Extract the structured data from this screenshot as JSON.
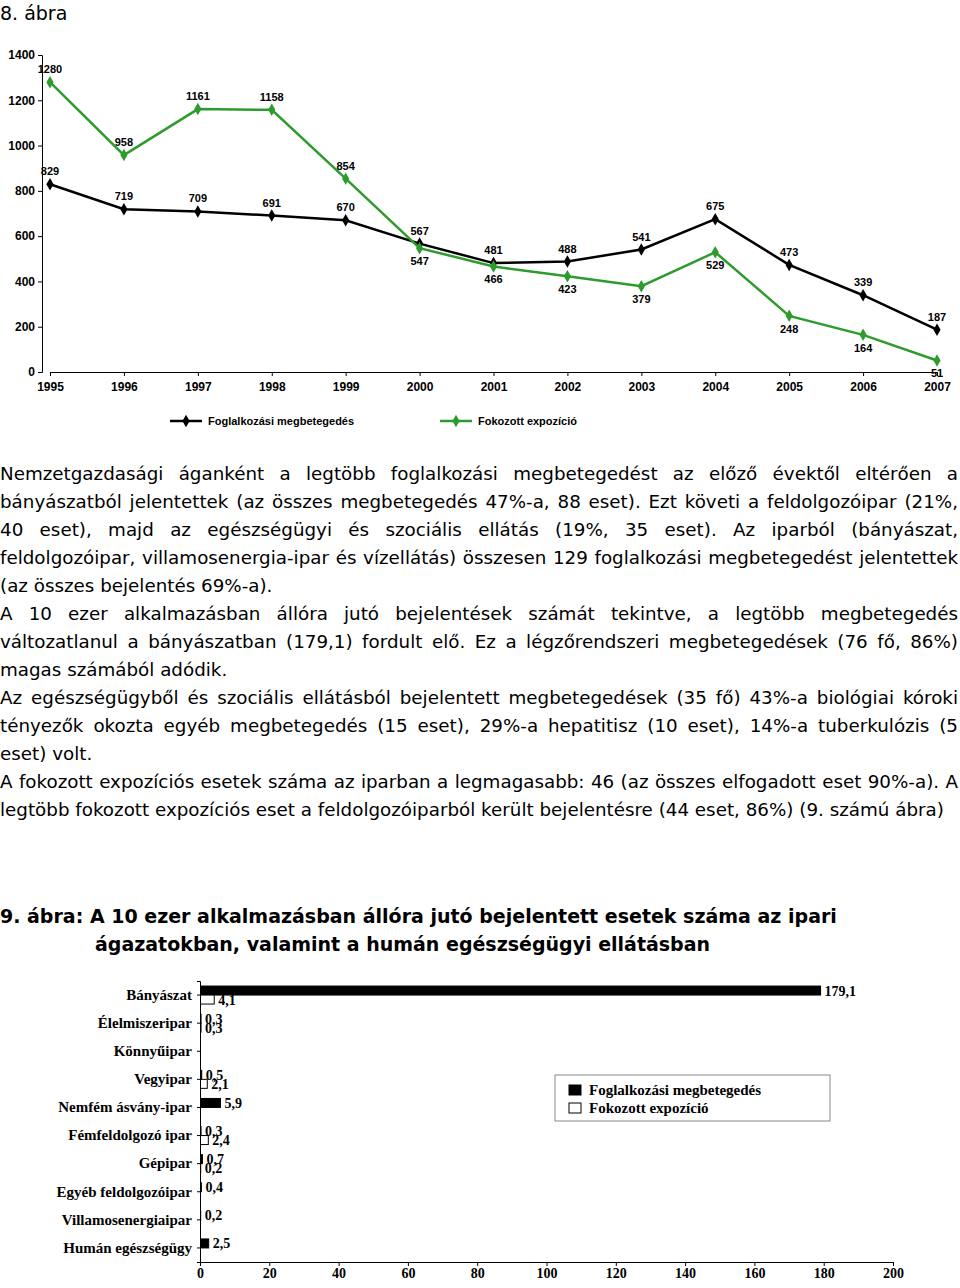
{
  "document": {
    "paragraphs": [
      "Nemzetgazdasági áganként a legtöbb foglalkozási megbetegedést az előző évektől eltérően a bányászatból jelentettek (az összes megbetegedés 47%-a, 88 eset). Ezt követi a feldolgozóipar (21%, 40 eset), majd az egészségügyi és szociális ellátás (19%, 35 eset). Az iparból (bányászat, feldolgozóipar, villamosenergia-ipar és vízellátás) összesen 129 foglalkozási megbetegedést jelentettek (az összes bejelentés 69%-a).",
      "A 10 ezer alkalmazásban állóra jutó bejelentések számát tekintve, a legtöbb megbetegedés változatlanul a bányászatban (179,1) fordult elő. Ez a légzőrendszeri megbetegedések (76 fő, 86%) magas számából adódik.",
      "Az egészségügyből és szociális ellátásból bejelentett megbetegedések (35 fő) 43%-a biológiai kóroki tényezők okozta egyéb megbetegedés (15 eset), 29%-a hepatitisz (10 eset), 14%-a tuberkulózis (5 eset) volt.",
      "A fokozott expozíciós esetek száma az iparban a legmagasabb: 46 (az összes elfogadott eset 90%-a). A legtöbb fokozott expozíciós eset a feldolgozóiparból került bejelentésre (44 eset, 86%) (9. számú ábra)"
    ]
  },
  "chart_data": [
    {
      "type": "line",
      "title": "8. ábra",
      "categories": [
        "1995",
        "1996",
        "1997",
        "1998",
        "1999",
        "2000",
        "2001",
        "2002",
        "2003",
        "2004",
        "2005",
        "2006",
        "2007"
      ],
      "series": [
        {
          "name": "Foglalkozási megbetegedés",
          "color": "#000000",
          "marker": "diamond",
          "values": [
            829,
            719,
            709,
            691,
            670,
            567,
            481,
            488,
            541,
            675,
            473,
            339,
            187
          ]
        },
        {
          "name": "Fokozott expozíció",
          "color": "#2e9b2e",
          "marker": "diamond",
          "values": [
            1280,
            958,
            1161,
            1158,
            854,
            547,
            466,
            423,
            379,
            529,
            248,
            164,
            51
          ]
        }
      ],
      "ylim": [
        0,
        1400
      ],
      "yticks": [
        0,
        200,
        400,
        600,
        800,
        1000,
        1200,
        1400
      ],
      "grid": false,
      "data_labels": true,
      "legend": "bottom"
    },
    {
      "type": "bar",
      "orientation": "horizontal",
      "title": "9. ábra: A 10 ezer alkalmazásban állóra jutó bejelentett esetek száma az ipari ágazatokban, valamint a humán egészségügyi ellátásban",
      "categories": [
        "Bányászat",
        "Élelmiszeripar",
        "Könnyűipar",
        "Vegyipar",
        "Nemfém ásvány-ipar",
        "Fémfeldolgozó ipar",
        "Gépipar",
        "Egyéb feldolgozóipar",
        "Villamosenergiaipar",
        "Humán egészségügy"
      ],
      "series": [
        {
          "name": "Foglalkozási megbetegedés",
          "color": "#000000",
          "values": [
            179.1,
            0.3,
            null,
            0.5,
            5.9,
            0.3,
            0.7,
            0.4,
            0.2,
            2.5
          ],
          "value_labels": [
            "179,1",
            "0,3",
            null,
            "0,5",
            "5,9",
            "0,3",
            "0,7",
            "0,4",
            "0,2",
            "2,5"
          ]
        },
        {
          "name": "Fokozott expozíció",
          "color": "#ffffff",
          "values": [
            4.1,
            0.3,
            null,
            2.1,
            null,
            2.4,
            0.2,
            null,
            null,
            null
          ],
          "value_labels": [
            "4,1",
            "0,3",
            null,
            "2,1",
            null,
            "2,4",
            "0,2",
            null,
            null,
            null
          ]
        }
      ],
      "xlim": [
        0,
        200
      ],
      "xticks": [
        0,
        20,
        40,
        60,
        80,
        100,
        120,
        140,
        160,
        180,
        200
      ],
      "grid": false,
      "data_labels": true,
      "legend": "right"
    }
  ]
}
